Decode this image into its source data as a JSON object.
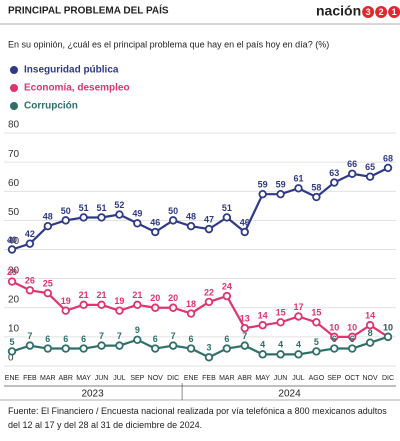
{
  "chart_data": {
    "type": "line",
    "title": "PRINCIPAL PROBLEMA DEL PAÍS",
    "brand": "nación",
    "brand_digits": "321",
    "subtitle": "En su opinión, ¿cuál es el principal problema que hay en el país hoy en día? (%)",
    "categories": [
      "ENE",
      "FEB",
      "MAR",
      "ABR",
      "MAY",
      "JUN",
      "JUL",
      "SEP",
      "NOV",
      "DIC",
      "ENE",
      "FEB",
      "MAR",
      "ABR",
      "MAY",
      "JUN",
      "JUL",
      "AGO",
      "SEP",
      "OCT",
      "NOV",
      "DIC"
    ],
    "x_groups": [
      {
        "label": "2023",
        "count": 10
      },
      {
        "label": "2024",
        "count": 12
      }
    ],
    "series": [
      {
        "name": "Inseguridad pública",
        "color": "#2e3a87",
        "values": [
          40,
          42,
          48,
          50,
          51,
          51,
          52,
          49,
          46,
          50,
          48,
          47,
          51,
          46,
          59,
          59,
          61,
          58,
          63,
          66,
          65,
          68
        ]
      },
      {
        "name": "Economía, desempleo",
        "color": "#e0336f",
        "values": [
          29,
          26,
          25,
          19,
          21,
          21,
          19,
          21,
          20,
          20,
          18,
          22,
          24,
          13,
          14,
          15,
          17,
          15,
          10,
          10,
          14,
          10
        ]
      },
      {
        "name": "Corrupción",
        "color": "#2f6f6a",
        "values": [
          5,
          7,
          6,
          6,
          6,
          7,
          7,
          9,
          6,
          7,
          6,
          3,
          6,
          7,
          4,
          4,
          4,
          5,
          6,
          6,
          8,
          10
        ]
      }
    ],
    "ylim": [
      0,
      80
    ],
    "yticks": [
      0,
      10,
      20,
      30,
      40,
      50,
      60,
      70,
      80
    ],
    "grid": true,
    "source": "Fuente: El Financiero / Encuesta nacional realizada por vía telefónica a 800 mexicanos adultos del 12 al 17 y del 28 al 31 de diciembre de 2024."
  }
}
